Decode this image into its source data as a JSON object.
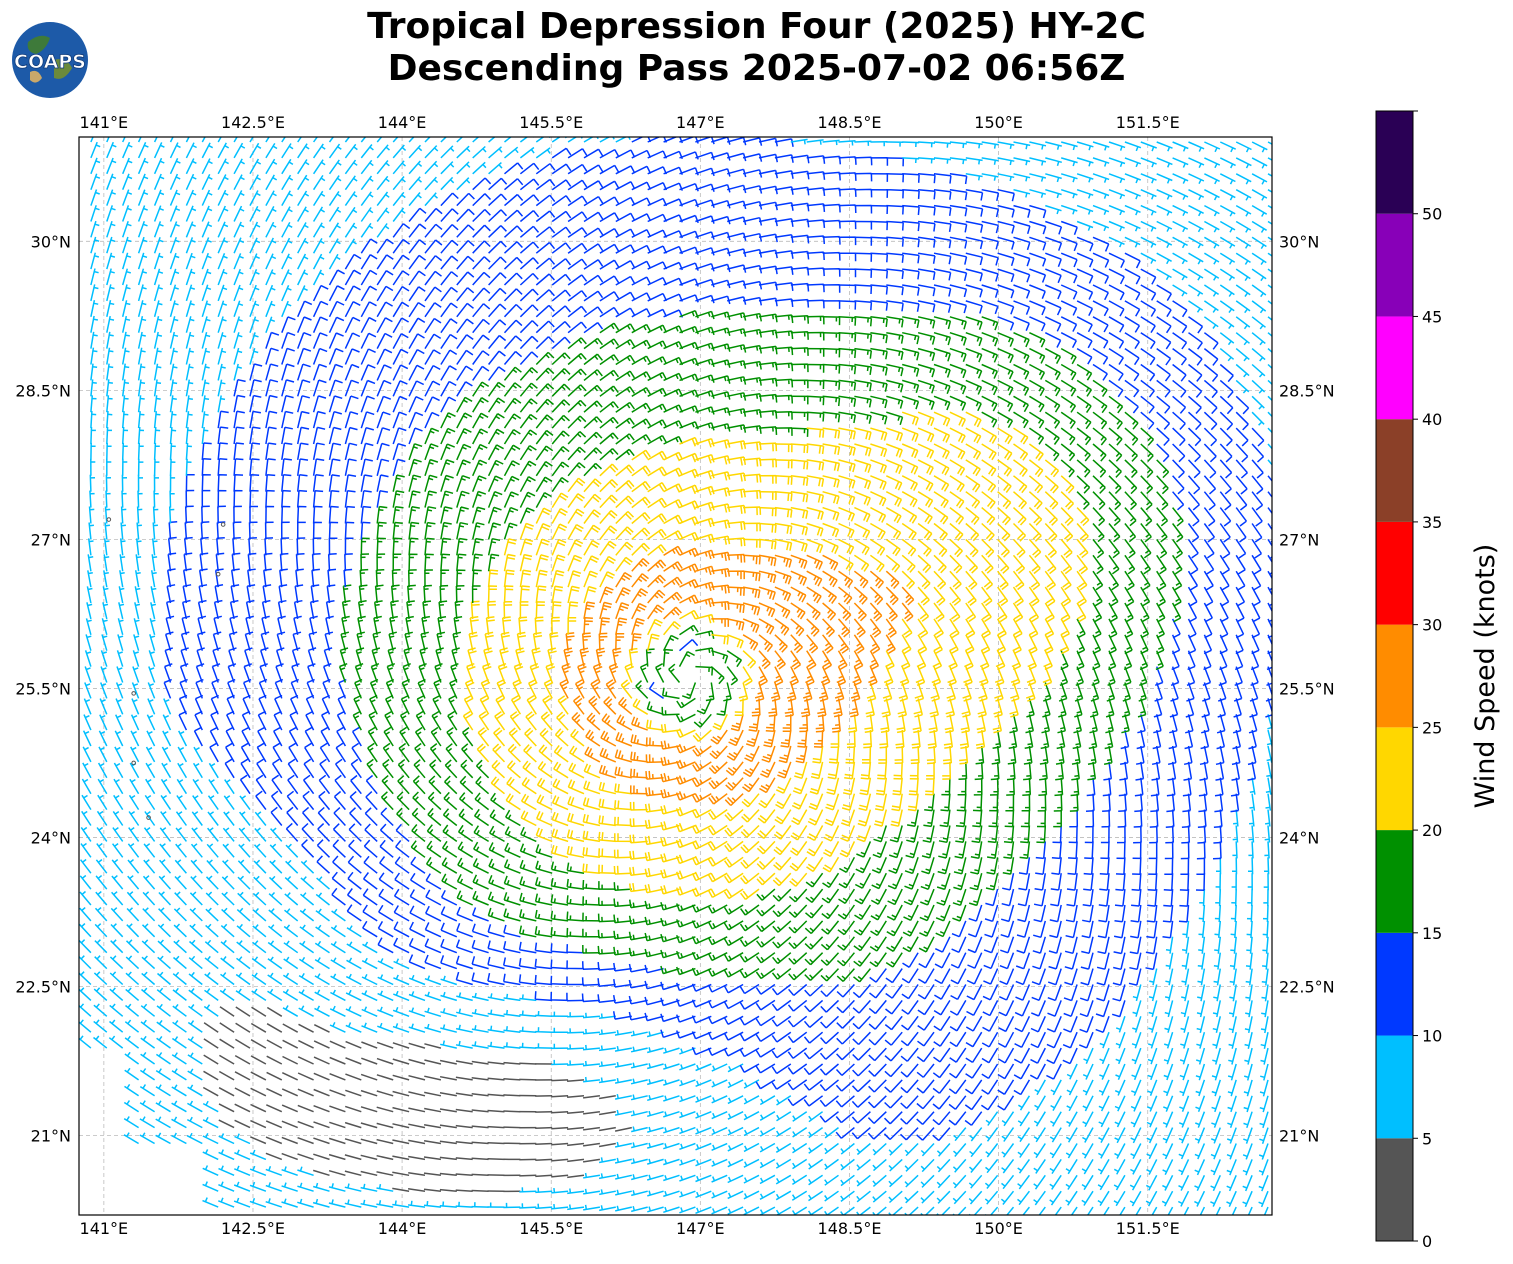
{
  "title": {
    "line1": "Tropical Depression Four (2025) HY-2C",
    "line2": "Descending Pass 2025-07-02 06:56Z"
  },
  "logo": {
    "text": "COAPS",
    "icon": "globe-logo-icon"
  },
  "map": {
    "lon_range": [
      140.75,
      152.75
    ],
    "lat_range": [
      20.2,
      31.05
    ],
    "lon_ticks": [
      {
        "value": 141.0,
        "label": "141°E"
      },
      {
        "value": 142.5,
        "label": "142.5°E"
      },
      {
        "value": 144.0,
        "label": "144°E"
      },
      {
        "value": 145.5,
        "label": "145.5°E"
      },
      {
        "value": 147.0,
        "label": "147°E"
      },
      {
        "value": 148.5,
        "label": "148.5°E"
      },
      {
        "value": 150.0,
        "label": "150°E"
      },
      {
        "value": 151.5,
        "label": "151.5°E"
      }
    ],
    "lat_ticks": [
      {
        "value": 21.0,
        "label": "21°N"
      },
      {
        "value": 22.5,
        "label": "22.5°N"
      },
      {
        "value": 24.0,
        "label": "24°N"
      },
      {
        "value": 25.5,
        "label": "25.5°N"
      },
      {
        "value": 27.0,
        "label": "27°N"
      },
      {
        "value": 28.5,
        "label": "28.5°N"
      },
      {
        "value": 30.0,
        "label": "30°N"
      }
    ],
    "grid": true,
    "storm_center": {
      "lon": 146.9,
      "lat": 25.6
    },
    "islands": [
      {
        "lon": 142.2,
        "lat": 27.15
      },
      {
        "lon": 142.15,
        "lat": 26.65
      },
      {
        "lon": 141.3,
        "lat": 25.45
      },
      {
        "lon": 141.3,
        "lat": 24.75
      },
      {
        "lon": 141.45,
        "lat": 24.2
      },
      {
        "lon": 141.05,
        "lat": 27.2
      }
    ]
  },
  "colorbar": {
    "label": "Wind Speed (knots)",
    "ticks": [
      "0",
      "5",
      "10",
      "15",
      "20",
      "25",
      "30",
      "35",
      "40",
      "45",
      "50"
    ],
    "levels": [
      0,
      5,
      10,
      15,
      20,
      25,
      30,
      35,
      40,
      45,
      50,
      55
    ],
    "colors": [
      "#555555",
      "#00bfff",
      "#0039ff",
      "#009000",
      "#ffd700",
      "#ff8c00",
      "#ff0000",
      "#8b4028",
      "#ff00ff",
      "#8800b8",
      "#2a0055"
    ]
  }
}
